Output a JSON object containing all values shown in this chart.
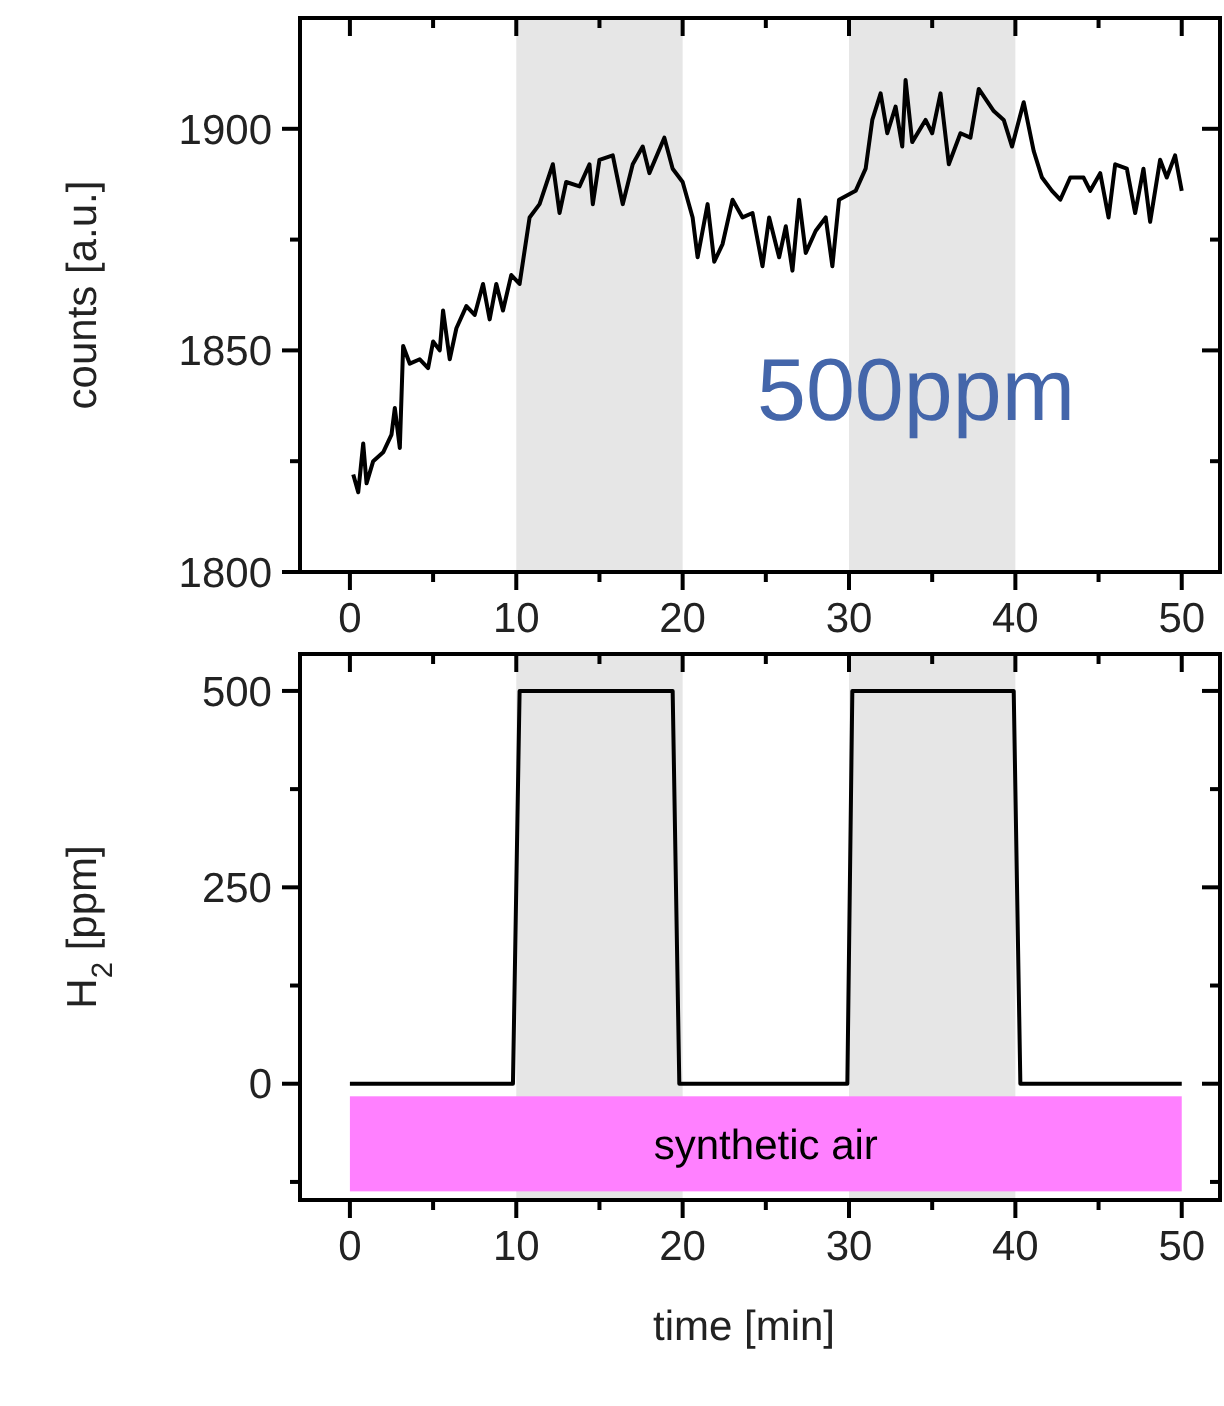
{
  "chart_data": [
    {
      "type": "line",
      "ylabel": "counts [a.u.]",
      "annotations": [
        "500ppm"
      ],
      "xlim": [
        -3,
        52.3
      ],
      "ylim": [
        1800,
        1925
      ],
      "xticks": [
        0,
        {
          "value": 5,
          "label": null
        },
        10,
        {
          "value": 15,
          "label": null
        },
        20,
        {
          "value": 25,
          "label": null
        },
        30,
        {
          "value": 35,
          "label": null
        },
        40,
        {
          "value": 45,
          "label": null
        },
        50
      ],
      "yticks": [
        1800,
        {
          "value": 1825,
          "label": null
        },
        1850,
        {
          "value": 1875,
          "label": null
        },
        1900
      ],
      "bands": [
        {
          "axis": "x",
          "from": 10,
          "to": 20,
          "color": "#e6e6e6"
        },
        {
          "axis": "x",
          "from": 30,
          "to": 40,
          "color": "#e6e6e6"
        }
      ],
      "grid": false,
      "marker": "none",
      "line_style": "solid",
      "series": [
        {
          "color": "#000000",
          "x": [
            0.2,
            0.5,
            0.8,
            1.0,
            1.4,
            2.0,
            2.5,
            2.7,
            3.0,
            3.2,
            3.6,
            4.2,
            4.7,
            5.0,
            5.4,
            5.6,
            6.0,
            6.4,
            7.0,
            7.5,
            8.0,
            8.4,
            8.8,
            9.2,
            9.7,
            10.2,
            10.8,
            11.4,
            12.2,
            12.6,
            13.0,
            13.8,
            14.4,
            14.6,
            15.0,
            15.8,
            16.4,
            17.0,
            17.6,
            18.0,
            18.9,
            19.4,
            20.0,
            20.6,
            20.9,
            21.5,
            21.9,
            22.4,
            23.0,
            23.6,
            24.2,
            24.8,
            25.2,
            25.8,
            26.2,
            26.6,
            27.0,
            27.4,
            28.0,
            28.6,
            29.0,
            29.4,
            30.4,
            31.0,
            31.4,
            31.9,
            32.3,
            32.8,
            33.2,
            33.4,
            33.8,
            34.6,
            35.0,
            35.5,
            36.0,
            36.7,
            37.3,
            37.8,
            38.7,
            39.3,
            39.8,
            40.5,
            41.1,
            41.6,
            42.2,
            42.7,
            43.3,
            44.1,
            44.5,
            45.1,
            45.6,
            46.0,
            46.7,
            47.2,
            47.7,
            48.1,
            48.7,
            49.1,
            49.6,
            50.0
          ],
          "values": [
            1822,
            1818,
            1829,
            1820,
            1825,
            1827,
            1831,
            1837,
            1828,
            1851,
            1847,
            1848,
            1846,
            1852,
            1850,
            1859,
            1848,
            1855,
            1860,
            1858,
            1865,
            1857,
            1865,
            1859,
            1867,
            1865,
            1880,
            1883,
            1892,
            1881,
            1888,
            1887,
            1892,
            1883,
            1893,
            1894,
            1883,
            1892,
            1896,
            1890,
            1898,
            1891,
            1888,
            1880,
            1871,
            1883,
            1870,
            1874,
            1884,
            1880,
            1881,
            1869,
            1880,
            1871,
            1878,
            1868,
            1884,
            1872,
            1877,
            1880,
            1869,
            1884,
            1886,
            1891,
            1902,
            1908,
            1899,
            1905,
            1896,
            1911,
            1897,
            1902,
            1899,
            1908,
            1892,
            1899,
            1898,
            1909,
            1904,
            1902,
            1896,
            1906,
            1895,
            1889,
            1886,
            1884,
            1889,
            1889,
            1886,
            1890,
            1880,
            1892,
            1891,
            1881,
            1891,
            1879,
            1893,
            1889,
            1894,
            1886
          ]
        }
      ]
    },
    {
      "type": "line",
      "ylabel": "H$_{2}$ [ppm]",
      "xlabel": "time [min]",
      "xlim": [
        -3,
        52.3
      ],
      "ylim": [
        -148,
        547
      ],
      "xticks": [
        0,
        {
          "value": 5,
          "label": null
        },
        10,
        {
          "value": 15,
          "label": null
        },
        20,
        {
          "value": 25,
          "label": null
        },
        30,
        {
          "value": 35,
          "label": null
        },
        40,
        {
          "value": 45,
          "label": null
        },
        50
      ],
      "yticks": [
        {
          "value": -125,
          "label": null
        },
        0,
        {
          "value": 125,
          "label": null
        },
        250,
        {
          "value": 375,
          "label": null
        },
        500
      ],
      "bands": [
        {
          "axis": "x",
          "from": 10,
          "to": 20,
          "color": "#e6e6e6"
        },
        {
          "axis": "x",
          "from": 30,
          "to": 40,
          "color": "#e6e6e6"
        },
        {
          "axis": "y",
          "from": -137,
          "to": -16,
          "label": "synthetic air",
          "color": "#ff80ff"
        }
      ],
      "grid": false,
      "marker": "none",
      "line_style": "solid",
      "series": [
        {
          "color": "#000000",
          "x": [
            0,
            9.8,
            10.2,
            19.4,
            19.8,
            29.9,
            30.2,
            39.9,
            40.3,
            50
          ],
          "values": [
            0,
            0,
            500,
            500,
            0,
            0,
            500,
            500,
            0,
            0
          ]
        }
      ]
    }
  ]
}
